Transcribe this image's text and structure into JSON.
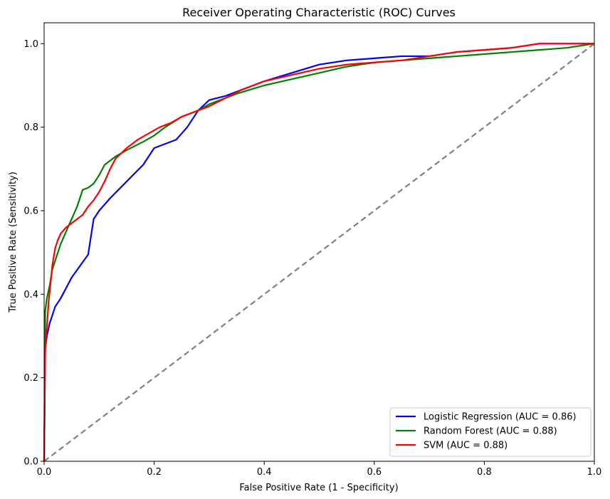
{
  "chart_data": {
    "type": "line",
    "title": "Receiver Operating Characteristic (ROC) Curves",
    "xlabel": "False Positive Rate (1 - Specificity)",
    "ylabel": "True Positive Rate (Sensitivity)",
    "xlim": [
      0.0,
      1.0
    ],
    "ylim": [
      0.0,
      1.05
    ],
    "x_ticks": [
      "0.0",
      "0.2",
      "0.4",
      "0.6",
      "0.8",
      "1.0"
    ],
    "y_ticks": [
      "0.0",
      "0.2",
      "0.4",
      "0.6",
      "0.8",
      "1.0"
    ],
    "grid": false,
    "legend_position": "lower-right",
    "series": [
      {
        "name": "Logistic Regression (AUC = 0.86)",
        "color": "#0000ff",
        "x": [
          0.0,
          0.002,
          0.005,
          0.01,
          0.015,
          0.02,
          0.03,
          0.05,
          0.08,
          0.09,
          0.1,
          0.12,
          0.15,
          0.18,
          0.2,
          0.22,
          0.24,
          0.26,
          0.28,
          0.3,
          0.33,
          0.36,
          0.4,
          0.45,
          0.5,
          0.55,
          0.6,
          0.65,
          0.7,
          0.75,
          0.8,
          0.85,
          0.9,
          0.95,
          1.0
        ],
        "y": [
          0.0,
          0.27,
          0.3,
          0.33,
          0.35,
          0.37,
          0.39,
          0.44,
          0.495,
          0.58,
          0.6,
          0.63,
          0.67,
          0.71,
          0.75,
          0.76,
          0.77,
          0.8,
          0.84,
          0.865,
          0.875,
          0.89,
          0.91,
          0.93,
          0.95,
          0.96,
          0.965,
          0.97,
          0.97,
          0.98,
          0.985,
          0.99,
          1.0,
          1.0,
          1.0
        ]
      },
      {
        "name": "Random Forest (AUC = 0.88)",
        "color": "#008000",
        "x": [
          0.0,
          0.002,
          0.005,
          0.01,
          0.015,
          0.02,
          0.025,
          0.03,
          0.04,
          0.05,
          0.06,
          0.07,
          0.08,
          0.09,
          0.1,
          0.11,
          0.13,
          0.15,
          0.18,
          0.2,
          0.22,
          0.25,
          0.28,
          0.3,
          0.35,
          0.4,
          0.45,
          0.5,
          0.55,
          0.6,
          0.65,
          0.7,
          0.75,
          0.8,
          0.85,
          0.9,
          0.95,
          1.0
        ],
        "y": [
          0.0,
          0.36,
          0.39,
          0.42,
          0.46,
          0.48,
          0.5,
          0.52,
          0.55,
          0.58,
          0.61,
          0.65,
          0.655,
          0.665,
          0.685,
          0.71,
          0.73,
          0.745,
          0.765,
          0.78,
          0.8,
          0.825,
          0.84,
          0.855,
          0.88,
          0.9,
          0.915,
          0.93,
          0.945,
          0.955,
          0.96,
          0.965,
          0.97,
          0.975,
          0.98,
          0.985,
          0.99,
          1.0
        ]
      },
      {
        "name": "SVM (AUC = 0.88)",
        "color": "#ff0000",
        "x": [
          0.0,
          0.002,
          0.005,
          0.008,
          0.012,
          0.015,
          0.02,
          0.025,
          0.03,
          0.04,
          0.05,
          0.06,
          0.07,
          0.08,
          0.09,
          0.1,
          0.11,
          0.12,
          0.13,
          0.15,
          0.17,
          0.19,
          0.21,
          0.23,
          0.25,
          0.28,
          0.3,
          0.33,
          0.36,
          0.4,
          0.45,
          0.5,
          0.55,
          0.6,
          0.65,
          0.7,
          0.75,
          0.8,
          0.85,
          0.9,
          0.95,
          1.0
        ],
        "y": [
          0.0,
          0.27,
          0.32,
          0.38,
          0.43,
          0.47,
          0.51,
          0.53,
          0.545,
          0.56,
          0.57,
          0.58,
          0.59,
          0.61,
          0.625,
          0.645,
          0.67,
          0.7,
          0.725,
          0.75,
          0.77,
          0.785,
          0.8,
          0.81,
          0.825,
          0.84,
          0.85,
          0.87,
          0.89,
          0.91,
          0.925,
          0.94,
          0.95,
          0.955,
          0.96,
          0.97,
          0.98,
          0.985,
          0.99,
          1.0,
          1.0,
          1.0
        ]
      }
    ],
    "reference_line": {
      "color": "#808080",
      "x": [
        0.0,
        1.0
      ],
      "y": [
        0.0,
        1.0
      ],
      "style": "dashed"
    }
  }
}
